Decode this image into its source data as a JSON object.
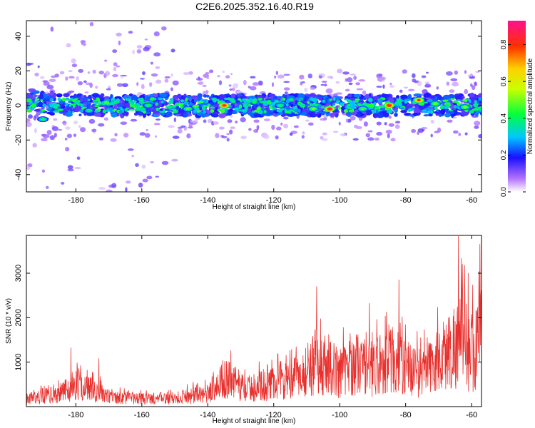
{
  "title": "C2E6.2025.352.16.40.R19",
  "chart_data": [
    {
      "type": "heatmap",
      "name": "spectrogram",
      "xlabel": "Height of straight line (km)",
      "ylabel": "Frequency (Hz)",
      "xlim": [
        -195,
        -57
      ],
      "ylim": [
        -50,
        49
      ],
      "xticks": [
        -180,
        -160,
        -140,
        -120,
        -100,
        -80,
        -60
      ],
      "yticks": [
        -40,
        -20,
        0,
        20,
        40
      ],
      "band_center_hz": 0,
      "band_halfwidth_hz": 6,
      "hotspots": [
        {
          "x": -190,
          "y": -8,
          "v": 0.45
        },
        {
          "x": -176,
          "y": -3,
          "v": 0.42
        },
        {
          "x": -158,
          "y": 0,
          "v": 0.45
        },
        {
          "x": -146,
          "y": -2,
          "v": 0.5
        },
        {
          "x": -135,
          "y": 0,
          "v": 0.9
        },
        {
          "x": -118,
          "y": 0,
          "v": 0.45
        },
        {
          "x": -108,
          "y": -2,
          "v": 0.55
        },
        {
          "x": -103,
          "y": -2,
          "v": 0.95
        },
        {
          "x": -93,
          "y": -2,
          "v": 0.5
        },
        {
          "x": -85,
          "y": 0,
          "v": 0.95
        },
        {
          "x": -76,
          "y": 3,
          "v": 0.85
        },
        {
          "x": -71,
          "y": 1,
          "v": 0.55
        },
        {
          "x": -62,
          "y": -1,
          "v": 0.55
        }
      ],
      "colorbar": {
        "label": "Normalized spectral amplitude",
        "range": [
          0,
          0.93
        ],
        "ticks": [
          0.0,
          0.2,
          0.4,
          0.6,
          0.8
        ],
        "tick_labels": [
          "0.0",
          "0.2",
          "0.4",
          "0.6",
          "0.8"
        ]
      }
    },
    {
      "type": "line",
      "name": "snr",
      "xlabel": "Height of straight line (km)",
      "ylabel": "SNR (10 * v/v)",
      "xlim": [
        -195,
        -57
      ],
      "ylim": [
        0,
        3850
      ],
      "xticks": [
        -180,
        -160,
        -140,
        -120,
        -100,
        -80,
        -60
      ],
      "yticks": [
        1000,
        2000,
        3000
      ],
      "color": "#e8312e",
      "envelope": {
        "x": [
          -195,
          -185,
          -180,
          -175,
          -170,
          -160,
          -150,
          -140,
          -135,
          -128,
          -120,
          -115,
          -110,
          -105,
          -100,
          -95,
          -90,
          -85,
          -80,
          -75,
          -70,
          -65,
          -63,
          -60,
          -57
        ],
        "y": [
          300,
          500,
          800,
          700,
          350,
          300,
          330,
          500,
          1100,
          700,
          900,
          1000,
          1400,
          1700,
          1300,
          1700,
          1500,
          1900,
          1500,
          1300,
          1800,
          2400,
          2600,
          2100,
          2700
        ]
      },
      "peaks": [
        {
          "x": -181.5,
          "y": 1320
        },
        {
          "x": -173,
          "y": 1080
        },
        {
          "x": -133,
          "y": 1260
        },
        {
          "x": -107,
          "y": 2700
        },
        {
          "x": -91,
          "y": 2320
        },
        {
          "x": -82,
          "y": 2850
        },
        {
          "x": -64,
          "y": 3830
        },
        {
          "x": -61,
          "y": 3000
        },
        {
          "x": -57.5,
          "y": 3650
        }
      ]
    }
  ]
}
